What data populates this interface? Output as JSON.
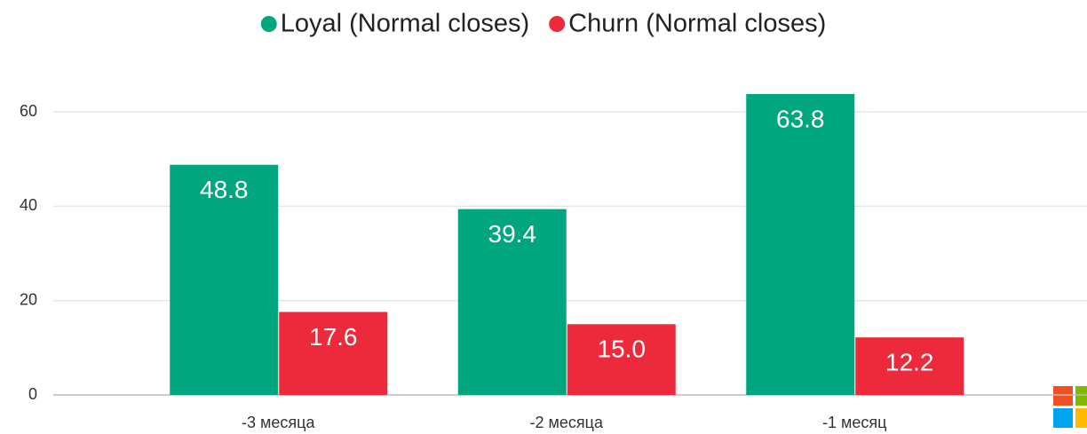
{
  "chart_data": {
    "type": "bar",
    "categories": [
      "-3 месяца",
      "-2 месяца",
      "-1 месяц"
    ],
    "series": [
      {
        "name": "Loyal (Normal closes)",
        "color": "#00a67e",
        "values": [
          48.8,
          39.4,
          63.8
        ],
        "value_labels": [
          "48.8",
          "39.4",
          "63.8"
        ]
      },
      {
        "name": "Churn (Normal closes)",
        "color": "#ec2a3c",
        "values": [
          17.6,
          15,
          12.2
        ],
        "value_labels": [
          "17.6",
          "15.0",
          "12.2"
        ]
      }
    ],
    "ylim": [
      0,
      70
    ],
    "yticks": [
      0,
      20,
      40,
      60
    ],
    "grid": true,
    "legend": "top"
  }
}
